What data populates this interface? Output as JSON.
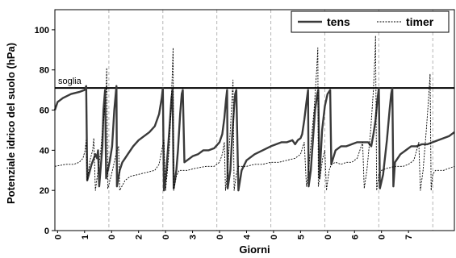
{
  "chart_data": {
    "type": "line",
    "xlabel": "Giorni",
    "ylabel": "Potenziale idrico del suolo (hPa)",
    "xlim": [
      0,
      7.4
    ],
    "ylim": [
      0,
      110
    ],
    "yticks": [
      0,
      20,
      40,
      60,
      80,
      100
    ],
    "x_tick_labels": [
      "0",
      "1",
      "0",
      "2",
      "0",
      "3",
      "0",
      "4",
      "0",
      "5",
      "0",
      "6",
      "0",
      "7"
    ],
    "grid_vertical_dashed": true,
    "legend": {
      "position": "top-right",
      "entries": [
        "tens",
        "timer"
      ]
    },
    "threshold": {
      "label": "soglia",
      "value": 71
    },
    "series": [
      {
        "name": "tens",
        "style": "thick-solid",
        "points": [
          [
            0.0,
            60
          ],
          [
            0.05,
            64
          ],
          [
            0.15,
            66
          ],
          [
            0.3,
            68
          ],
          [
            0.45,
            69
          ],
          [
            0.55,
            70
          ],
          [
            0.58,
            72
          ],
          [
            0.6,
            25
          ],
          [
            0.68,
            33
          ],
          [
            0.75,
            38
          ],
          [
            0.78,
            36
          ],
          [
            0.8,
            40
          ],
          [
            0.82,
            22
          ],
          [
            0.85,
            32
          ],
          [
            0.88,
            42
          ],
          [
            0.9,
            60
          ],
          [
            0.93,
            70
          ],
          [
            0.95,
            26
          ],
          [
            1.02,
            35
          ],
          [
            1.06,
            42
          ],
          [
            1.1,
            60
          ],
          [
            1.14,
            72
          ],
          [
            1.15,
            22
          ],
          [
            1.2,
            30
          ],
          [
            1.25,
            34
          ],
          [
            1.3,
            36
          ],
          [
            1.35,
            38
          ],
          [
            1.4,
            40
          ],
          [
            1.45,
            42
          ],
          [
            1.55,
            45
          ],
          [
            1.65,
            47
          ],
          [
            1.75,
            49
          ],
          [
            1.85,
            52
          ],
          [
            1.93,
            58
          ],
          [
            1.98,
            66
          ],
          [
            2.0,
            71
          ],
          [
            2.02,
            20
          ],
          [
            2.06,
            28
          ],
          [
            2.12,
            50
          ],
          [
            2.16,
            66
          ],
          [
            2.18,
            70
          ],
          [
            2.2,
            21
          ],
          [
            2.25,
            30
          ],
          [
            2.28,
            40
          ],
          [
            2.32,
            58
          ],
          [
            2.35,
            68
          ],
          [
            2.37,
            70
          ],
          [
            2.4,
            34
          ],
          [
            2.45,
            35
          ],
          [
            2.55,
            37
          ],
          [
            2.65,
            38
          ],
          [
            2.75,
            40
          ],
          [
            2.85,
            40
          ],
          [
            2.95,
            41
          ],
          [
            3.05,
            44
          ],
          [
            3.1,
            48
          ],
          [
            3.14,
            56
          ],
          [
            3.17,
            65
          ],
          [
            3.19,
            70
          ],
          [
            3.2,
            21
          ],
          [
            3.25,
            30
          ],
          [
            3.28,
            45
          ],
          [
            3.32,
            62
          ],
          [
            3.34,
            68
          ],
          [
            3.36,
            70
          ],
          [
            3.4,
            20
          ],
          [
            3.46,
            30
          ],
          [
            3.55,
            35
          ],
          [
            3.7,
            38
          ],
          [
            3.85,
            40
          ],
          [
            4.0,
            42
          ],
          [
            4.1,
            43
          ],
          [
            4.2,
            44
          ],
          [
            4.3,
            44
          ],
          [
            4.4,
            45
          ],
          [
            4.45,
            43
          ],
          [
            4.5,
            45
          ],
          [
            4.55,
            46
          ],
          [
            4.58,
            48
          ],
          [
            4.62,
            55
          ],
          [
            4.66,
            64
          ],
          [
            4.69,
            70
          ],
          [
            4.7,
            22
          ],
          [
            4.74,
            30
          ],
          [
            4.78,
            45
          ],
          [
            4.82,
            60
          ],
          [
            4.86,
            68
          ],
          [
            4.88,
            70
          ],
          [
            4.9,
            26
          ],
          [
            4.95,
            50
          ],
          [
            5.0,
            62
          ],
          [
            5.05,
            68
          ],
          [
            5.1,
            70
          ],
          [
            5.12,
            33
          ],
          [
            5.2,
            40
          ],
          [
            5.3,
            42
          ],
          [
            5.4,
            42
          ],
          [
            5.5,
            43
          ],
          [
            5.6,
            44
          ],
          [
            5.7,
            44
          ],
          [
            5.8,
            44
          ],
          [
            5.86,
            42
          ],
          [
            5.9,
            48
          ],
          [
            5.94,
            55
          ],
          [
            5.97,
            64
          ],
          [
            6.0,
            71
          ],
          [
            6.02,
            21
          ],
          [
            6.08,
            28
          ],
          [
            6.15,
            45
          ],
          [
            6.2,
            60
          ],
          [
            6.23,
            68
          ],
          [
            6.25,
            71
          ],
          [
            6.27,
            22
          ],
          [
            6.3,
            34
          ],
          [
            6.4,
            38
          ],
          [
            6.5,
            40
          ],
          [
            6.6,
            42
          ],
          [
            6.7,
            42
          ],
          [
            6.8,
            43
          ],
          [
            6.9,
            43
          ],
          [
            7.0,
            44
          ],
          [
            7.1,
            45
          ],
          [
            7.2,
            46
          ],
          [
            7.3,
            47
          ],
          [
            7.4,
            49
          ]
        ]
      },
      {
        "name": "timer",
        "style": "thin-dotted",
        "points": [
          [
            0.0,
            32
          ],
          [
            0.2,
            33
          ],
          [
            0.35,
            33
          ],
          [
            0.45,
            34
          ],
          [
            0.52,
            36
          ],
          [
            0.56,
            40
          ],
          [
            0.58,
            45
          ],
          [
            0.6,
            25
          ],
          [
            0.65,
            35
          ],
          [
            0.7,
            40
          ],
          [
            0.72,
            46
          ],
          [
            0.75,
            20
          ],
          [
            0.8,
            30
          ],
          [
            0.85,
            40
          ],
          [
            0.88,
            50
          ],
          [
            0.92,
            60
          ],
          [
            0.95,
            70
          ],
          [
            0.96,
            81
          ],
          [
            0.98,
            21
          ],
          [
            1.05,
            28
          ],
          [
            1.1,
            34
          ],
          [
            1.15,
            40
          ],
          [
            1.18,
            42
          ],
          [
            1.2,
            20
          ],
          [
            1.3,
            25
          ],
          [
            1.4,
            27
          ],
          [
            1.55,
            28
          ],
          [
            1.7,
            29
          ],
          [
            1.85,
            30
          ],
          [
            1.93,
            33
          ],
          [
            1.98,
            40
          ],
          [
            2.02,
            45
          ],
          [
            2.05,
            20
          ],
          [
            2.08,
            28
          ],
          [
            2.12,
            42
          ],
          [
            2.15,
            60
          ],
          [
            2.17,
            75
          ],
          [
            2.19,
            91
          ],
          [
            2.2,
            20
          ],
          [
            2.25,
            27
          ],
          [
            2.3,
            30
          ],
          [
            2.45,
            30
          ],
          [
            2.6,
            31
          ],
          [
            2.8,
            32
          ],
          [
            2.95,
            32
          ],
          [
            3.05,
            34
          ],
          [
            3.1,
            38
          ],
          [
            3.14,
            44
          ],
          [
            3.16,
            20
          ],
          [
            3.2,
            30
          ],
          [
            3.25,
            50
          ],
          [
            3.28,
            65
          ],
          [
            3.3,
            75
          ],
          [
            3.32,
            20
          ],
          [
            3.36,
            28
          ],
          [
            3.4,
            32
          ],
          [
            3.55,
            32
          ],
          [
            3.7,
            33
          ],
          [
            3.85,
            33
          ],
          [
            4.0,
            34
          ],
          [
            4.15,
            34
          ],
          [
            4.3,
            35
          ],
          [
            4.45,
            36
          ],
          [
            4.55,
            38
          ],
          [
            4.62,
            44
          ],
          [
            4.66,
            22
          ],
          [
            4.7,
            30
          ],
          [
            4.75,
            45
          ],
          [
            4.8,
            60
          ],
          [
            4.85,
            80
          ],
          [
            4.87,
            91
          ],
          [
            4.88,
            22
          ],
          [
            4.92,
            28
          ],
          [
            4.96,
            36
          ],
          [
            5.0,
            40
          ],
          [
            5.03,
            20
          ],
          [
            5.08,
            30
          ],
          [
            5.12,
            33
          ],
          [
            5.2,
            34
          ],
          [
            5.3,
            33
          ],
          [
            5.4,
            34
          ],
          [
            5.5,
            34
          ],
          [
            5.6,
            36
          ],
          [
            5.65,
            40
          ],
          [
            5.7,
            44
          ],
          [
            5.73,
            21
          ],
          [
            5.78,
            30
          ],
          [
            5.85,
            50
          ],
          [
            5.9,
            70
          ],
          [
            5.93,
            88
          ],
          [
            5.94,
            97
          ],
          [
            5.96,
            20
          ],
          [
            6.0,
            28
          ],
          [
            6.05,
            30
          ],
          [
            6.15,
            31
          ],
          [
            6.3,
            32
          ],
          [
            6.45,
            32
          ],
          [
            6.55,
            33
          ],
          [
            6.65,
            35
          ],
          [
            6.7,
            40
          ],
          [
            6.74,
            44
          ],
          [
            6.77,
            20
          ],
          [
            6.82,
            30
          ],
          [
            6.88,
            50
          ],
          [
            6.92,
            65
          ],
          [
            6.95,
            78
          ],
          [
            6.97,
            20
          ],
          [
            7.0,
            28
          ],
          [
            7.05,
            30
          ],
          [
            7.2,
            30
          ],
          [
            7.3,
            31
          ],
          [
            7.4,
            32
          ]
        ]
      }
    ]
  }
}
